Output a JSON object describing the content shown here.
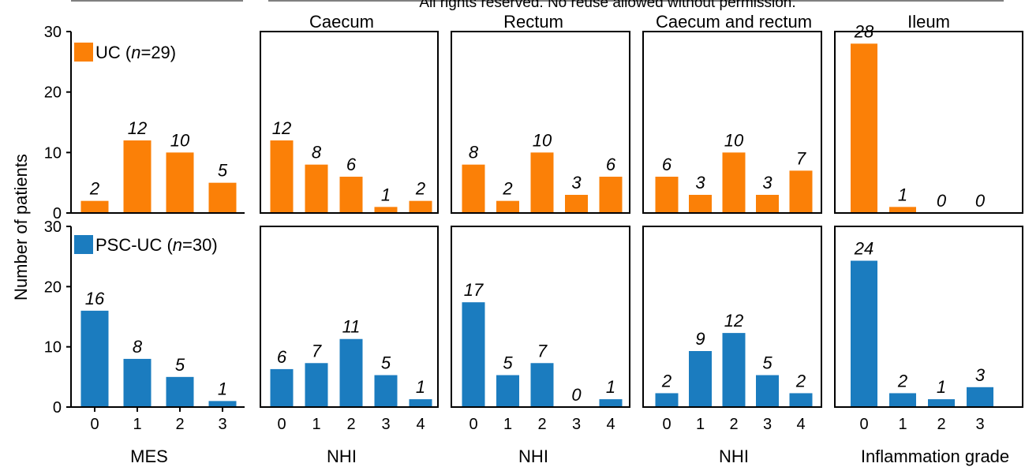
{
  "copyright_note": "All rights reserved. No reuse allowed without permission.",
  "y_axis_label": "Number of patients",
  "colors": {
    "uc": "#fb8007",
    "pscuc": "#1b7cbf"
  },
  "chart_data": [
    {
      "id": "mes",
      "type": "bar",
      "title": "",
      "xlabel": "MES",
      "categories": [
        "0",
        "1",
        "2",
        "3"
      ],
      "ylim": [
        0,
        30
      ],
      "yticks": [
        "0",
        "10",
        "20",
        "30"
      ],
      "series": [
        {
          "name": "UC (n=29)",
          "name_parts": [
            "UC (",
            "n",
            "=29)"
          ],
          "values": [
            2,
            12,
            10,
            5
          ],
          "labels": [
            "2",
            "12",
            "10",
            "5"
          ]
        },
        {
          "name": "PSC-UC (n=30)",
          "name_parts": [
            "PSC-UC (",
            "n",
            "=30)"
          ],
          "values": [
            16,
            8,
            5,
            1
          ],
          "labels": [
            "16",
            "8",
            "5",
            "1"
          ]
        }
      ]
    },
    {
      "id": "caecum",
      "type": "bar",
      "title": "Caecum",
      "xlabel": "NHI",
      "categories": [
        "0",
        "1",
        "2",
        "3",
        "4"
      ],
      "ylim": [
        0,
        30
      ],
      "series": [
        {
          "name": "",
          "values": [
            12,
            8,
            6,
            1,
            2
          ],
          "labels": [
            "12",
            "8",
            "6",
            "1",
            "2"
          ]
        },
        {
          "name": "",
          "values": [
            6.3,
            7.3,
            11.3,
            5.3,
            1.3
          ],
          "labels": [
            "6",
            "7",
            "11",
            "5",
            "1"
          ]
        }
      ]
    },
    {
      "id": "rectum",
      "type": "bar",
      "title": "Rectum",
      "xlabel": "NHI",
      "categories": [
        "0",
        "1",
        "2",
        "3",
        "4"
      ],
      "ylim": [
        0,
        30
      ],
      "series": [
        {
          "name": "",
          "values": [
            8,
            2,
            10,
            3,
            6
          ],
          "labels": [
            "8",
            "2",
            "10",
            "3",
            "6"
          ]
        },
        {
          "name": "",
          "values": [
            17.4,
            5.3,
            7.3,
            0,
            1.3
          ],
          "labels": [
            "17",
            "5",
            "7",
            "0",
            "1"
          ]
        }
      ]
    },
    {
      "id": "caecum-rectum",
      "type": "bar",
      "title": "Caecum and rectum",
      "xlabel": "NHI",
      "categories": [
        "0",
        "1",
        "2",
        "3",
        "4"
      ],
      "ylim": [
        0,
        30
      ],
      "series": [
        {
          "name": "",
          "values": [
            6,
            3,
            10,
            3,
            7
          ],
          "labels": [
            "6",
            "3",
            "10",
            "3",
            "7"
          ]
        },
        {
          "name": "",
          "values": [
            2.3,
            9.3,
            12.3,
            5.3,
            2.3
          ],
          "labels": [
            "2",
            "9",
            "12",
            "5",
            "2"
          ]
        }
      ]
    },
    {
      "id": "ileum",
      "type": "bar",
      "title": "Ileum",
      "xlabel": "Inflammation grade",
      "categories": [
        "0",
        "1",
        "2",
        "3"
      ],
      "ylim": [
        0,
        30
      ],
      "series": [
        {
          "name": "",
          "values": [
            28,
            1,
            0,
            0
          ],
          "labels": [
            "28",
            "1",
            "0",
            "0"
          ]
        },
        {
          "name": "",
          "values": [
            24.3,
            2.3,
            1.3,
            3.3
          ],
          "labels": [
            "24",
            "2",
            "1",
            "3"
          ]
        }
      ]
    }
  ]
}
